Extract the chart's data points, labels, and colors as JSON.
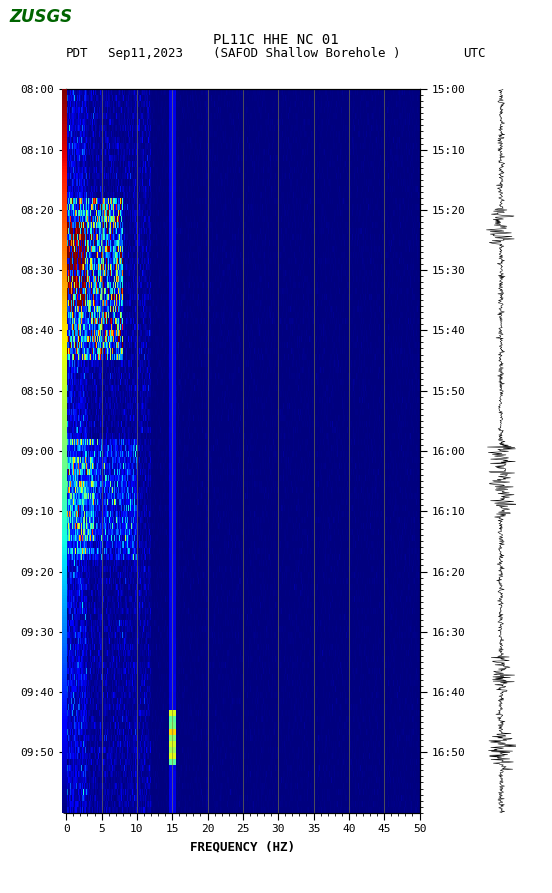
{
  "title_line1": "PL11C HHE NC 01",
  "title_line2": "(SAFOD Shallow Borehole )",
  "date_label": "Sep11,2023",
  "left_tz": "PDT",
  "right_tz": "UTC",
  "left_times": [
    "08:00",
    "08:10",
    "08:20",
    "08:30",
    "08:40",
    "08:50",
    "09:00",
    "09:10",
    "09:20",
    "09:30",
    "09:40",
    "09:50"
  ],
  "right_times": [
    "15:00",
    "15:10",
    "15:20",
    "15:30",
    "15:40",
    "15:50",
    "16:00",
    "16:10",
    "16:20",
    "16:30",
    "16:40",
    "16:50"
  ],
  "freq_min": 0,
  "freq_max": 50,
  "freq_ticks": [
    0,
    5,
    10,
    15,
    20,
    25,
    30,
    35,
    40,
    45,
    50
  ],
  "xlabel": "FREQUENCY (HZ)",
  "time_steps": 120,
  "freq_steps": 500,
  "fig_bg": "#ffffff",
  "vertical_lines_freq": [
    5,
    10,
    15,
    20,
    25,
    30,
    35,
    40,
    45
  ],
  "vline_color": "#808040",
  "colormap": "jet",
  "spectrogram_seed": 42,
  "usgs_color": "#006400"
}
